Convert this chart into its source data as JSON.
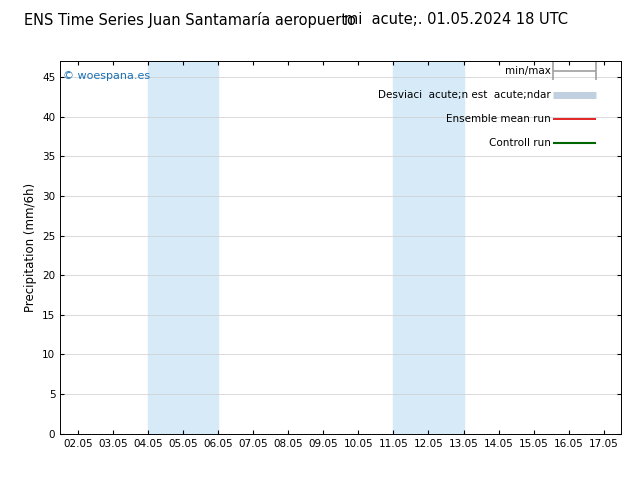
{
  "title": "ENS Time Series Juan Santamaría aeropuerto",
  "subtitle": "mi  acute;. 01.05.2024 18 UTC",
  "ylabel": "Precipitation (mm/6h)",
  "watermark": "© woespana.es",
  "x_ticks": [
    "02.05",
    "03.05",
    "04.05",
    "05.05",
    "06.05",
    "07.05",
    "08.05",
    "09.05",
    "10.05",
    "11.05",
    "12.05",
    "13.05",
    "14.05",
    "15.05",
    "16.05",
    "17.05"
  ],
  "ylim": [
    0,
    47
  ],
  "yticks": [
    0,
    5,
    10,
    15,
    20,
    25,
    30,
    35,
    40,
    45
  ],
  "shaded_regions": [
    {
      "xmin": 2.0,
      "xmax": 4.0,
      "color": "#d6eaf8"
    },
    {
      "xmin": 9.0,
      "xmax": 11.0,
      "color": "#d6eaf8"
    }
  ],
  "legend_items": [
    {
      "label": "min/max",
      "color": "#a0a0a0",
      "lw": 1.2
    },
    {
      "label": "Desviaci  acute;n est  acute;ndar",
      "color": "#c0d0e0",
      "lw": 5
    },
    {
      "label": "Ensemble mean run",
      "color": "#dd0000",
      "lw": 1.2
    },
    {
      "label": "Controll run",
      "color": "#006600",
      "lw": 1.5
    }
  ],
  "background_color": "#ffffff",
  "plot_bg_color": "#ffffff",
  "grid_color": "#cccccc",
  "title_fontsize": 10.5,
  "tick_fontsize": 7.5,
  "ylabel_fontsize": 8.5,
  "watermark_fontsize": 8,
  "legend_fontsize": 7.5
}
